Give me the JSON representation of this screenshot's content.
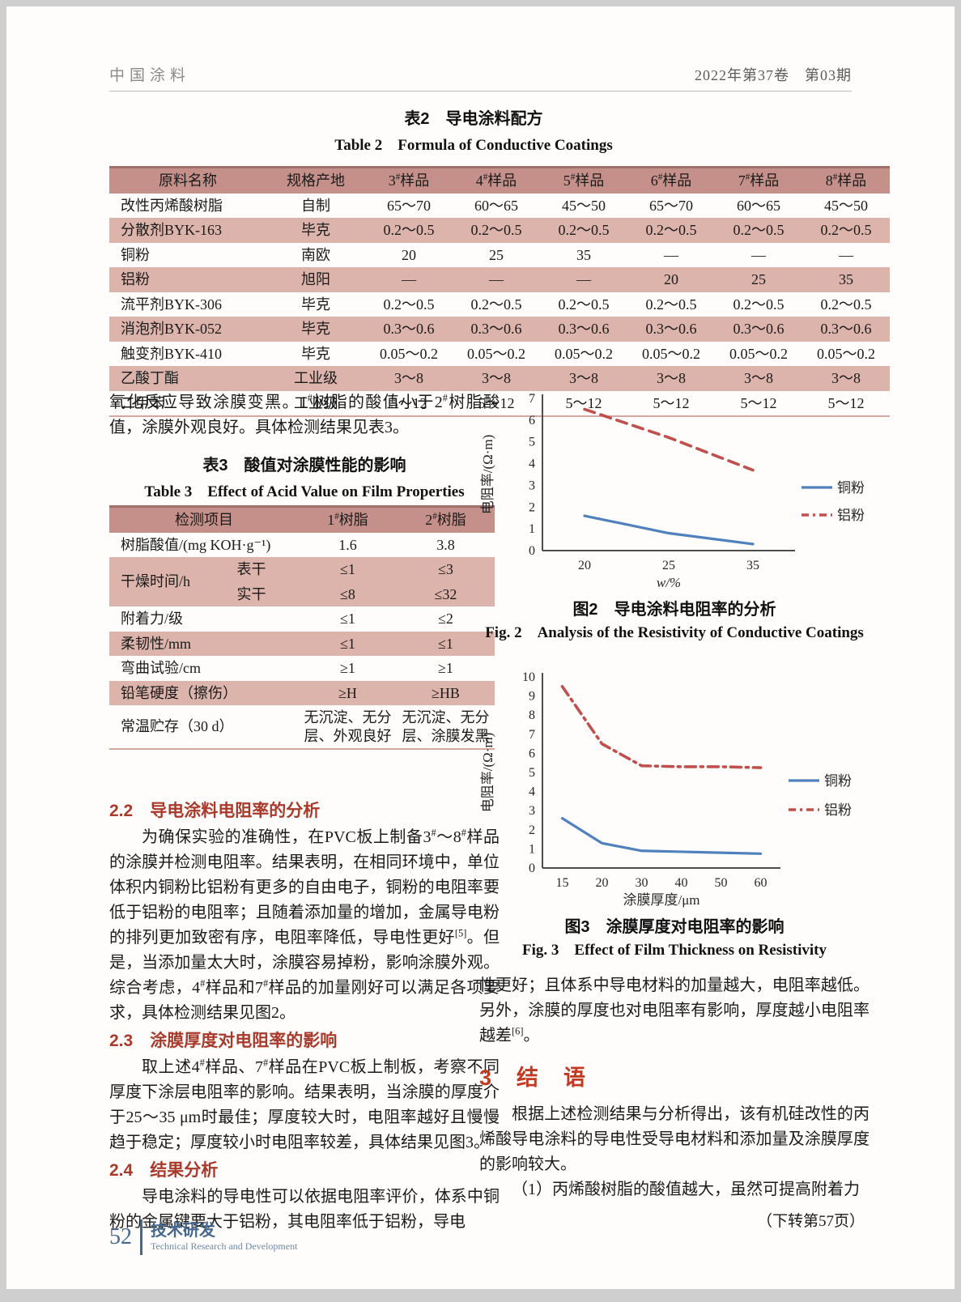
{
  "header": {
    "journal": "中国涂料",
    "issue": "2022年第37卷　第03期"
  },
  "footer": {
    "page_number": "52",
    "section_cn": "技术研发",
    "section_en": "Technical Research and Development"
  },
  "table2": {
    "title_cn": "表2　导电涂料配方",
    "title_en": "Table 2　Formula of Conductive Coatings",
    "columns": [
      "原料名称",
      "规格产地",
      "3#样品",
      "4#样品",
      "5#样品",
      "6#样品",
      "7#样品",
      "8#样品"
    ],
    "rows": [
      [
        "改性丙烯酸树脂",
        "自制",
        "65～70",
        "60～65",
        "45～50",
        "65～70",
        "60～65",
        "45～50"
      ],
      [
        "分散剂BYK-163",
        "毕克",
        "0.2～0.5",
        "0.2～0.5",
        "0.2～0.5",
        "0.2～0.5",
        "0.2～0.5",
        "0.2～0.5"
      ],
      [
        "铜粉",
        "南欧",
        "20",
        "25",
        "35",
        "—",
        "—",
        "—"
      ],
      [
        "铝粉",
        "旭阳",
        "—",
        "—",
        "—",
        "20",
        "25",
        "35"
      ],
      [
        "流平剂BYK-306",
        "毕克",
        "0.2～0.5",
        "0.2～0.5",
        "0.2～0.5",
        "0.2～0.5",
        "0.2～0.5",
        "0.2～0.5"
      ],
      [
        "消泡剂BYK-052",
        "毕克",
        "0.3～0.6",
        "0.3～0.6",
        "0.3～0.6",
        "0.3～0.6",
        "0.3～0.6",
        "0.3～0.6"
      ],
      [
        "触变剂BYK-410",
        "毕克",
        "0.05～0.2",
        "0.05～0.2",
        "0.05～0.2",
        "0.05～0.2",
        "0.05～0.2",
        "0.05～0.2"
      ],
      [
        "乙酸丁酯",
        "工业级",
        "3～8",
        "3～8",
        "3～8",
        "3～8",
        "3～8",
        "3～8"
      ],
      [
        "二甲苯",
        "工业级",
        "5～12",
        "5～12",
        "5～12",
        "5～12",
        "5～12",
        "5～12"
      ]
    ]
  },
  "para_after_table2": "氧化反应导致涂膜变黑。1#树脂的酸值小于2#树脂酸值，涂膜外观良好。具体检测结果见表3。",
  "table3": {
    "title_cn": "表3　酸值对涂膜性能的影响",
    "title_en": "Table 3　Effect of Acid Value on Film Properties",
    "columns": [
      "检测项目",
      "1#树脂",
      "2#树脂"
    ],
    "rows": [
      {
        "label": "树脂酸值/(mg KOH·g⁻¹)",
        "v1": "1.6",
        "v2": "3.8",
        "shaded": false
      },
      {
        "label": "干燥时间/h",
        "shaded": true,
        "sub": [
          {
            "name": "表干",
            "v1": "≤1",
            "v2": "≤3"
          },
          {
            "name": "实干",
            "v1": "≤8",
            "v2": "≤32"
          }
        ]
      },
      {
        "label": "附着力/级",
        "v1": "≤1",
        "v2": "≤2",
        "shaded": false
      },
      {
        "label": "柔韧性/mm",
        "v1": "≤1",
        "v2": "≤1",
        "shaded": true
      },
      {
        "label": "弯曲试验/cm",
        "v1": "≥1",
        "v2": "≥1",
        "shaded": false
      },
      {
        "label": "铅笔硬度（擦伤）",
        "v1": "≥H",
        "v2": "≥HB",
        "shaded": true
      },
      {
        "label": "常温贮存（30 d）",
        "v1": "无沉淀、无分层、外观良好",
        "v2": "无沉淀、无分层、涂膜发黑",
        "shaded": false
      }
    ]
  },
  "sections": {
    "s22_heading": "2.2　导电涂料电阻率的分析",
    "s22_body": "为确保实验的准确性，在PVC板上制备3#～8#样品的涂膜并检测电阻率。结果表明，在相同环境中，单位体积内铜粉比铝粉有更多的自由电子，铜粉的电阻率要低于铝粉的电阻率；且随着添加量的增加，金属导电粉的排列更加致密有序，电阻率降低，导电性更好[5]。但是，当添加量太大时，涂膜容易掉粉，影响涂膜外观。综合考虑，4#样品和7#样品的加量刚好可以满足各项要求，具体检测结果见图2。",
    "s23_heading": "2.3　涂膜厚度对电阻率的影响",
    "s23_body": "取上述4#样品、7#样品在PVC板上制板，考察不同厚度下涂层电阻率的影响。结果表明，当涂膜的厚度介于25～35 μm时最佳；厚度较大时，电阻率越好且慢慢趋于稳定；厚度较小时电阻率较差，具体结果见图3。",
    "s24_heading": "2.4　结果分析",
    "s24_body": "导电涂料的导电性可以依据电阻率评价，体系中铜粉的金属键要大于铝粉，其电阻率低于铝粉，导电",
    "s24_continuation": "性更好；且体系中导电材料的加量越大，电阻率越低。另外，涂膜的厚度也对电阻率有影响，厚度越小电阻率越差[6]。",
    "s3_heading": "3　结　语",
    "s3_body1": "根据上述检测结果与分析得出，该有机硅改性的丙烯酸导电涂料的导电性受导电材料和添加量及涂膜厚度的影响较大。",
    "s3_body2": "（1）丙烯酸树脂的酸值越大，虽然可提高附着力",
    "turn_note": "（下转第57页）"
  },
  "chart_data": [
    {
      "id": "fig2",
      "type": "line",
      "caption_cn": "图2　导电涂料电阻率的分析",
      "caption_en": "Fig. 2　Analysis of the Resistivity of Conductive Coatings",
      "categories": [
        "20",
        "25",
        "35"
      ],
      "xlabel": "w/%",
      "xlabel_italic": true,
      "ylabel": "电阻率/(Ω·m)",
      "ylim": [
        0,
        7
      ],
      "ytick_step": 1,
      "grid": false,
      "legend_position": "right",
      "series": [
        {
          "name": "铜粉",
          "color": "#4f81bd",
          "dash": "solid",
          "values": [
            1.6,
            0.8,
            0.3
          ]
        },
        {
          "name": "铝粉",
          "color": "#c0504d",
          "dash": "dashed",
          "values": [
            6.5,
            5.2,
            3.7
          ]
        }
      ]
    },
    {
      "id": "fig3",
      "type": "line",
      "caption_cn": "图3　涂膜厚度对电阻率的影响",
      "caption_en": "Fig. 3　Effect of Film Thickness on Resistivity",
      "categories": [
        "15",
        "20",
        "30",
        "40",
        "50",
        "60"
      ],
      "xlabel": "涂膜厚度/μm",
      "xlabel_italic": false,
      "ylabel": "电阻率/(Ω·m)",
      "ylim": [
        0,
        10
      ],
      "ytick_step": 1,
      "grid": false,
      "legend_position": "right",
      "series": [
        {
          "name": "铜粉",
          "color": "#4f81bd",
          "dash": "solid",
          "values": [
            2.6,
            1.3,
            0.9,
            0.85,
            0.8,
            0.75
          ]
        },
        {
          "name": "铝粉",
          "color": "#c0504d",
          "dash": "dashdot",
          "values": [
            9.5,
            6.5,
            5.35,
            5.3,
            5.3,
            5.25
          ]
        }
      ]
    }
  ],
  "colors": {
    "table_header_bg": "#c5908a",
    "table_alt_row_bg": "#ddb4ac",
    "section_heading_red": "#a93a2b",
    "big_heading_red": "#c23a24",
    "footer_blue": "#46688f",
    "line_blue": "#4f81bd",
    "line_red": "#c0504d"
  }
}
